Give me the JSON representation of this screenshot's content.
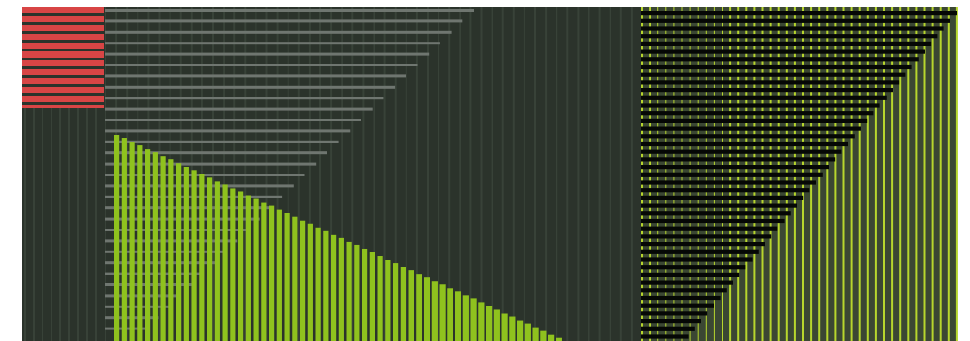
{
  "title": "",
  "colors": {
    "background": "#ffffff",
    "panel_dark": "#2b332b",
    "panel_stripe": "#384238",
    "black_stripe": "#050705",
    "accent_red": "#d84545",
    "accent_lime": "#8fc21e",
    "gray_bar": "#6f7670",
    "neon_line": "#b7d62d",
    "neon_fill": "#3b4733"
  },
  "pattern": {
    "left_bands": "red-striped-block",
    "main_region": "gray-bars-and-lime-columns",
    "right_region": "neon-grid-with-black-staircase"
  }
}
